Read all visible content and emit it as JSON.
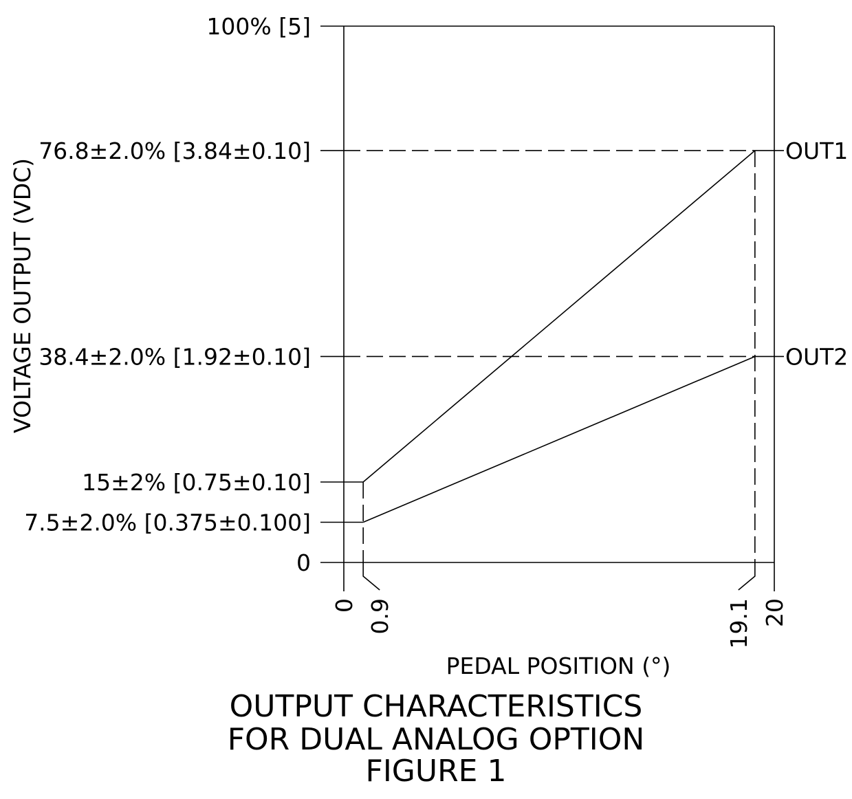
{
  "chart_data": {
    "type": "line",
    "xlabel": "PEDAL POSITION (°)",
    "ylabel": "VOLTAGE OUTPUT (VDC)",
    "xlim": [
      0,
      20
    ],
    "ylim": [
      0,
      100
    ],
    "grid": false,
    "x_ticks": [
      "0",
      "0.9",
      "19.1",
      "20"
    ],
    "y_ticks": [
      {
        "value": 100,
        "label": "100% [5]"
      },
      {
        "value": 76.8,
        "label": "76.8±2.0% [3.84±0.10]"
      },
      {
        "value": 38.4,
        "label": "38.4±2.0% [1.92±0.10]"
      },
      {
        "value": 15,
        "label": "15±2% [0.75±0.10]"
      },
      {
        "value": 7.5,
        "label": "7.5±2.0% [0.375±0.100]"
      },
      {
        "value": 0,
        "label": "0"
      }
    ],
    "series": [
      {
        "name": "OUT1",
        "x": [
          0.9,
          19.1
        ],
        "y": [
          15,
          76.8
        ]
      },
      {
        "name": "OUT2",
        "x": [
          0.9,
          19.1
        ],
        "y": [
          7.5,
          38.4
        ]
      }
    ]
  },
  "caption": {
    "line1": "OUTPUT CHARACTERISTICS",
    "line2": "FOR DUAL ANALOG OPTION",
    "line3": "FIGURE 1"
  }
}
